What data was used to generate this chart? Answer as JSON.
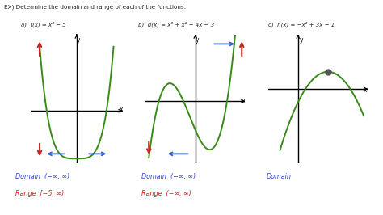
{
  "title": "EX) Determine the domain and range of each of the functions:",
  "func_a": "a)  f(x) = x⁴ − 5",
  "func_b": "b)  g(x) = x³ + x² − 4x − 3",
  "func_c": "c)  h(x) = −x² + 3x − 1",
  "domain_a": "Domain  (−∞, ∞)",
  "range_a": "Range  [−5, ∞)",
  "domain_b": "Domain  (−∞, ∞)",
  "range_b": "Range  (−∞, ∞)",
  "domain_c": "Domain",
  "bg_color": "#ffffff",
  "curve_color": "#3a8a1a",
  "text_blue": "#3344bb",
  "text_red": "#cc2222",
  "text_dark": "#222222",
  "arrow_blue": "#3366cc",
  "arrow_red": "#cc2222"
}
